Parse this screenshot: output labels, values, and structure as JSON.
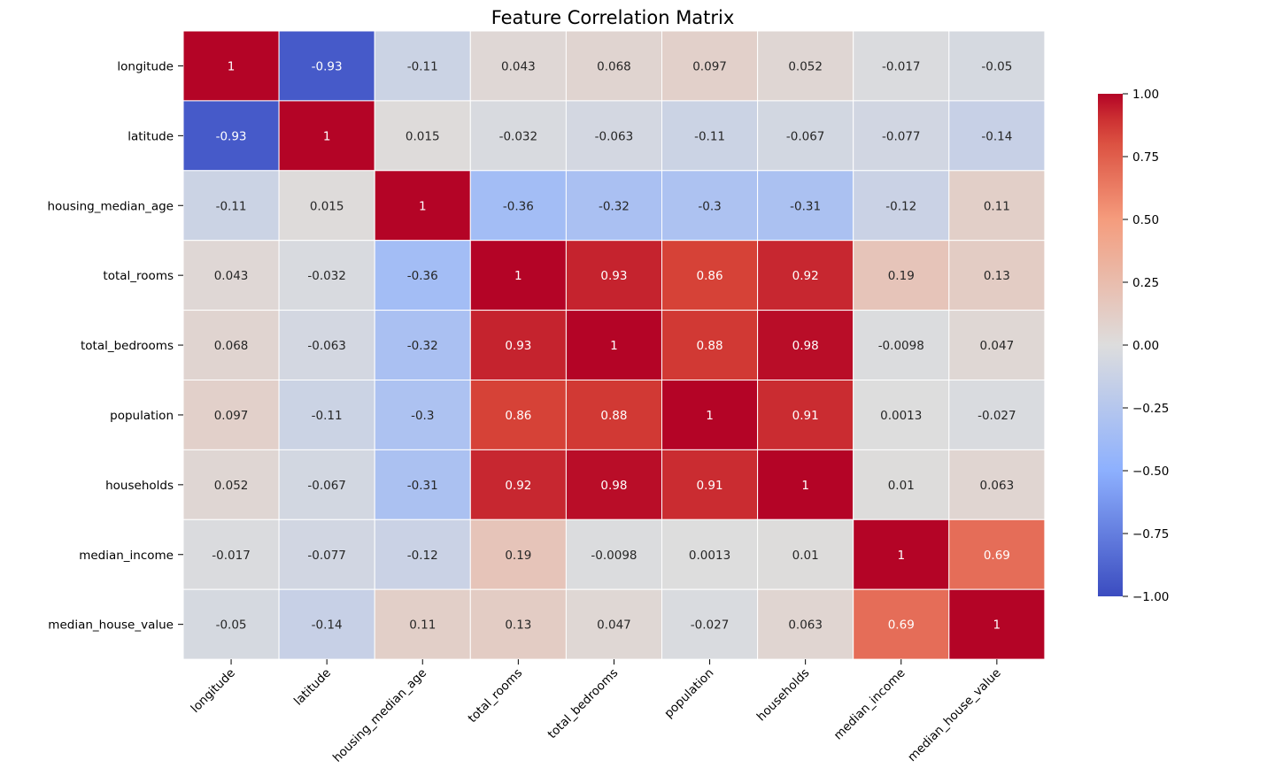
{
  "chart_data": {
    "type": "heatmap",
    "title": "Feature Correlation Matrix",
    "xlabel": "",
    "ylabel": "",
    "labels": [
      "longitude",
      "latitude",
      "housing_median_age",
      "total_rooms",
      "total_bedrooms",
      "population",
      "households",
      "median_income",
      "median_house_value"
    ],
    "matrix": [
      [
        1,
        -0.93,
        -0.11,
        0.043,
        0.068,
        0.097,
        0.052,
        -0.017,
        -0.05
      ],
      [
        -0.93,
        1,
        0.015,
        -0.032,
        -0.063,
        -0.11,
        -0.067,
        -0.077,
        -0.14
      ],
      [
        -0.11,
        0.015,
        1,
        -0.36,
        -0.32,
        -0.3,
        -0.31,
        -0.12,
        0.11
      ],
      [
        0.043,
        -0.032,
        -0.36,
        1,
        0.93,
        0.86,
        0.92,
        0.19,
        0.13
      ],
      [
        0.068,
        -0.063,
        -0.32,
        0.93,
        1,
        0.88,
        0.98,
        -0.0098,
        0.047
      ],
      [
        0.097,
        -0.11,
        -0.3,
        0.86,
        0.88,
        1,
        0.91,
        0.0013,
        -0.027
      ],
      [
        0.052,
        -0.067,
        -0.31,
        0.92,
        0.98,
        0.91,
        1,
        0.01,
        0.063
      ],
      [
        -0.017,
        -0.077,
        -0.12,
        0.19,
        -0.0098,
        0.0013,
        0.01,
        1,
        0.69
      ],
      [
        -0.05,
        -0.14,
        0.11,
        0.13,
        0.047,
        -0.027,
        0.063,
        0.69,
        1
      ]
    ],
    "colormap": "coolwarm",
    "vmin": -1.0,
    "vmax": 1.0,
    "colorbar_ticks": [
      "1.00",
      "0.75",
      "0.50",
      "0.25",
      "0.00",
      "−0.25",
      "−0.50",
      "−0.75",
      "−1.00"
    ],
    "annotated": true,
    "legend_placement": "colorbar-right"
  }
}
